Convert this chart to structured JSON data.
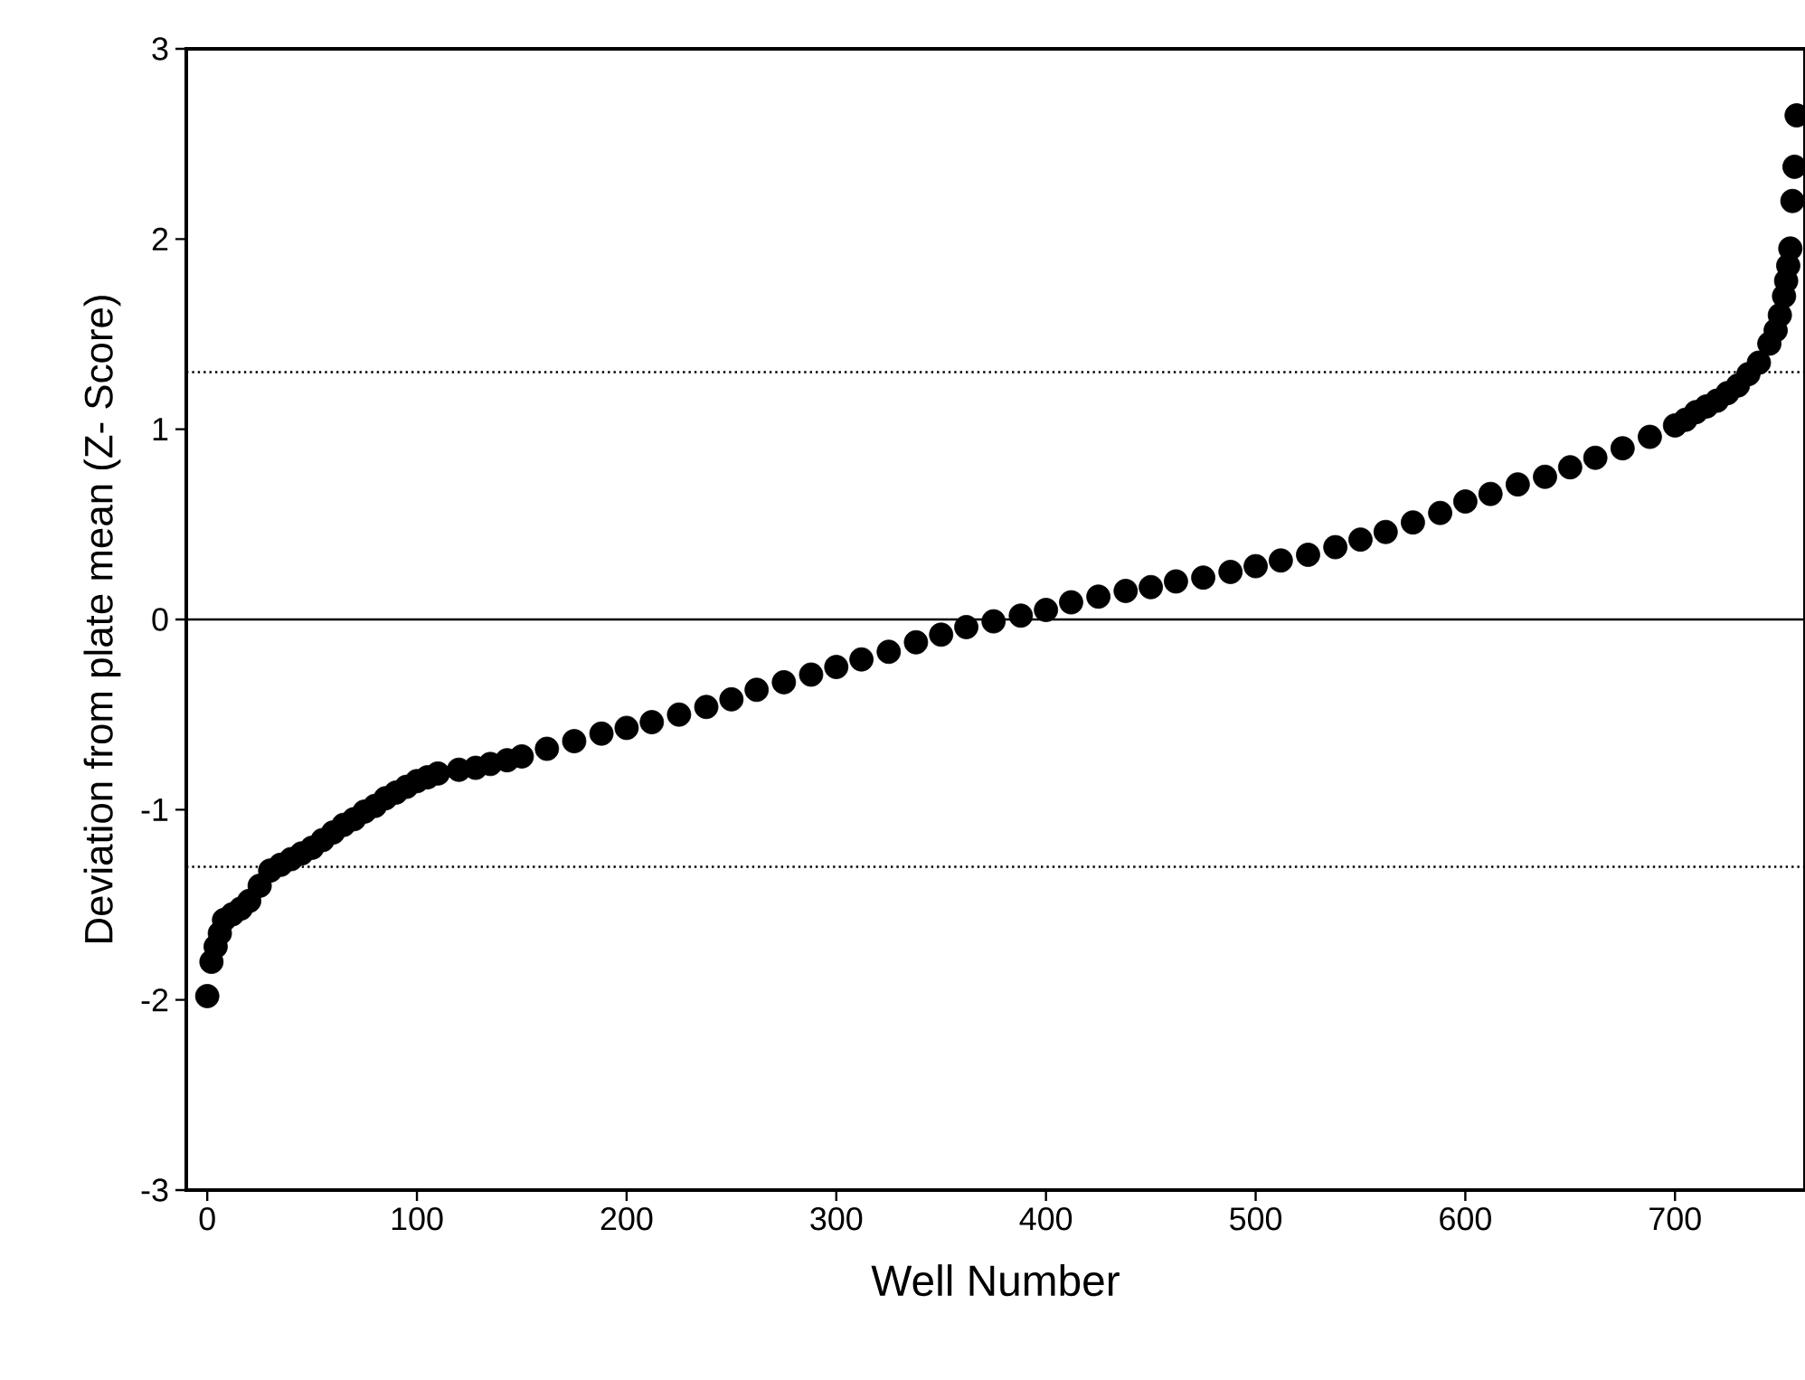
{
  "chart_data": {
    "type": "scatter",
    "xlabel": "Well Number",
    "ylabel": "Deviation from plate mean (Z- Score)",
    "xlim": [
      -10,
      762
    ],
    "ylim": [
      -3,
      3
    ],
    "xticks": [
      0,
      100,
      200,
      300,
      400,
      500,
      600,
      700
    ],
    "yticks": [
      -3,
      -2,
      -1,
      0,
      1,
      2,
      3
    ],
    "grid": false,
    "ref_lines": [
      {
        "axis": "y",
        "value": 0,
        "line_style": "solid",
        "color": "#000000"
      },
      {
        "axis": "y",
        "value": 1.3,
        "line_style": "dotted",
        "color": "#000000"
      },
      {
        "axis": "y",
        "value": -1.3,
        "line_style": "dotted",
        "color": "#000000"
      }
    ],
    "series": [
      {
        "color": "#000000",
        "x": [
          0,
          2,
          4,
          6,
          8,
          12,
          16,
          20,
          25,
          30,
          35,
          40,
          45,
          50,
          55,
          60,
          65,
          70,
          75,
          80,
          85,
          90,
          95,
          100,
          105,
          110,
          120,
          128,
          135,
          143,
          150,
          162,
          175,
          188,
          200,
          212,
          225,
          238,
          250,
          262,
          275,
          288,
          300,
          312,
          325,
          338,
          350,
          362,
          375,
          388,
          400,
          412,
          425,
          438,
          450,
          462,
          475,
          488,
          500,
          512,
          525,
          538,
          550,
          562,
          575,
          588,
          600,
          612,
          625,
          638,
          650,
          662,
          675,
          688,
          700,
          705,
          710,
          715,
          720,
          725,
          730,
          735,
          740,
          745,
          748,
          750,
          752,
          753,
          754,
          755,
          756,
          757,
          758
        ],
        "values": [
          -1.98,
          -1.8,
          -1.72,
          -1.65,
          -1.58,
          -1.55,
          -1.52,
          -1.48,
          -1.4,
          -1.32,
          -1.29,
          -1.26,
          -1.23,
          -1.2,
          -1.16,
          -1.12,
          -1.08,
          -1.05,
          -1.01,
          -0.98,
          -0.94,
          -0.91,
          -0.88,
          -0.85,
          -0.83,
          -0.81,
          -0.79,
          -0.78,
          -0.76,
          -0.74,
          -0.72,
          -0.68,
          -0.64,
          -0.6,
          -0.57,
          -0.54,
          -0.5,
          -0.46,
          -0.42,
          -0.37,
          -0.33,
          -0.29,
          -0.25,
          -0.21,
          -0.17,
          -0.12,
          -0.08,
          -0.04,
          -0.01,
          0.02,
          0.05,
          0.09,
          0.12,
          0.15,
          0.17,
          0.2,
          0.22,
          0.25,
          0.28,
          0.31,
          0.34,
          0.38,
          0.42,
          0.46,
          0.51,
          0.56,
          0.62,
          0.66,
          0.71,
          0.75,
          0.8,
          0.85,
          0.9,
          0.96,
          1.02,
          1.05,
          1.09,
          1.12,
          1.15,
          1.19,
          1.23,
          1.29,
          1.35,
          1.45,
          1.52,
          1.6,
          1.7,
          1.78,
          1.86,
          1.95,
          2.2,
          2.38,
          2.65
        ]
      }
    ]
  }
}
